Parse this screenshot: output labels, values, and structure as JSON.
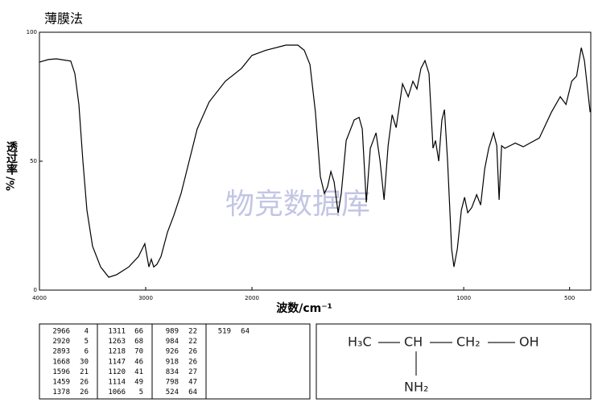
{
  "chart_data": {
    "type": "line",
    "title": "薄膜法",
    "ylabel": "透过率",
    "ylabel_unit": "%/",
    "xlabel": "波数/cm⁻¹",
    "watermark": "物竞数据库",
    "color": "#000000",
    "xlim": [
      4000,
      400
    ],
    "ylim": [
      0,
      100
    ],
    "xticks": [
      4000,
      3000,
      2000,
      1000,
      500
    ],
    "yticks": [
      0,
      50,
      100
    ],
    "x_scale_change": 2000,
    "x": [
      4000,
      3917,
      3841,
      3705,
      3667,
      3629,
      3591,
      3553,
      3500,
      3424,
      3348,
      3273,
      3159,
      3068,
      3008,
      2985,
      2970,
      2947,
      2924,
      2894,
      2856,
      2795,
      2735,
      2667,
      2591,
      2515,
      2402,
      2250,
      2098,
      2000,
      1935,
      1840,
      1783,
      1753,
      1726,
      1700,
      1677,
      1658,
      1643,
      1627,
      1612,
      1593,
      1578,
      1555,
      1517,
      1494,
      1479,
      1460,
      1441,
      1414,
      1395,
      1376,
      1357,
      1338,
      1319,
      1289,
      1262,
      1240,
      1221,
      1202,
      1183,
      1164,
      1145,
      1133,
      1118,
      1103,
      1091,
      1076,
      1057,
      1046,
      1030,
      1011,
      996,
      981,
      962,
      939,
      920,
      901,
      882,
      859,
      844,
      833,
      821,
      806,
      757,
      719,
      643,
      586,
      544,
      517,
      490,
      467,
      445,
      430,
      403
    ],
    "values": [
      88.4,
      89.4,
      89.7,
      88.8,
      84,
      72,
      50,
      31,
      17,
      9,
      5,
      6,
      9,
      13,
      18,
      12.5,
      9,
      12,
      9,
      10,
      13,
      22.5,
      29,
      37.5,
      50,
      62.5,
      73,
      81,
      86,
      91,
      93,
      95,
      95,
      93,
      87.5,
      69,
      44,
      37.5,
      40,
      46,
      42,
      30,
      37.5,
      58,
      66,
      67,
      62.5,
      34,
      55,
      61,
      50,
      35,
      56,
      68,
      63,
      80,
      75,
      81,
      78,
      86,
      89,
      84,
      55,
      58,
      50,
      66,
      70,
      50,
      16,
      9,
      16,
      31,
      36,
      30,
      32,
      37,
      33,
      47,
      55,
      61,
      56,
      35,
      56,
      55,
      57,
      55.6,
      59,
      69,
      75,
      72,
      81,
      83,
      94,
      89,
      69
    ]
  },
  "peaks": {
    "columns": [
      [
        [
          2966,
          4
        ],
        [
          2920,
          5
        ],
        [
          2893,
          6
        ],
        [
          1668,
          30
        ],
        [
          1596,
          21
        ],
        [
          1459,
          26
        ],
        [
          1378,
          26
        ]
      ],
      [
        [
          1311,
          66
        ],
        [
          1263,
          68
        ],
        [
          1218,
          70
        ],
        [
          1147,
          46
        ],
        [
          1120,
          41
        ],
        [
          1114,
          49
        ],
        [
          1066,
          5
        ]
      ],
      [
        [
          989,
          22
        ],
        [
          984,
          22
        ],
        [
          926,
          26
        ],
        [
          918,
          26
        ],
        [
          834,
          27
        ],
        [
          798,
          47
        ],
        [
          524,
          64
        ]
      ],
      [
        [
          519,
          64
        ]
      ]
    ]
  },
  "structure": {
    "chain": [
      "H₃C",
      "CH",
      "CH₂",
      "OH"
    ],
    "substituent": "NH₂"
  }
}
